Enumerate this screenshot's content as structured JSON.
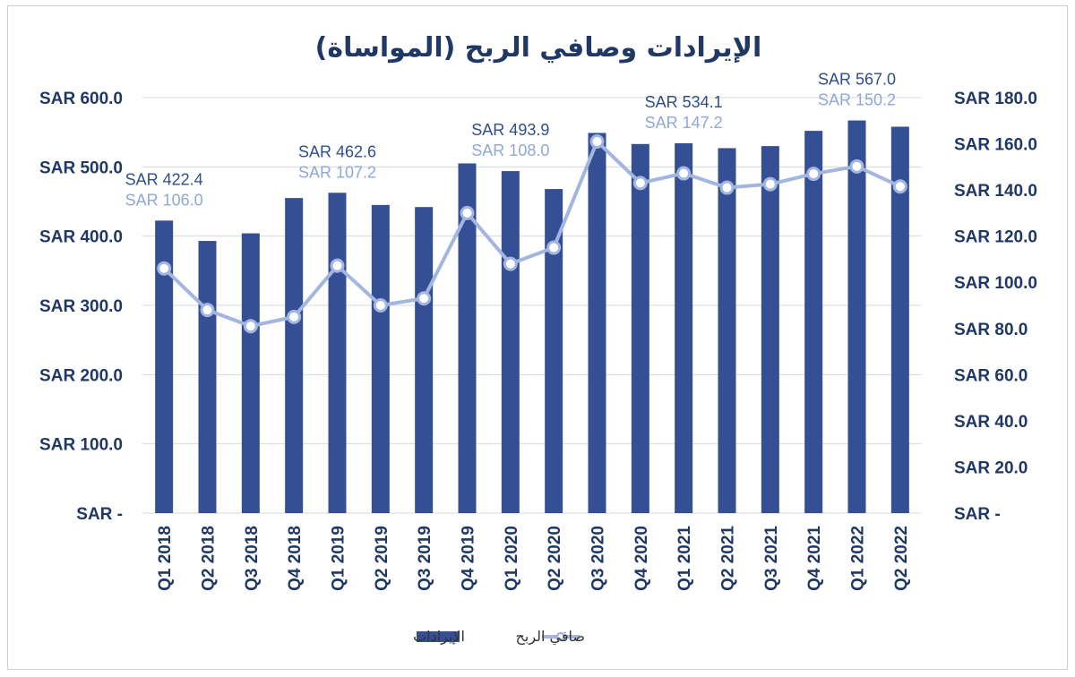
{
  "colors": {
    "bar": "#344f93",
    "line": "#a3b6e2",
    "text": "#1f3864",
    "grid": "#d9d9d9"
  },
  "chart_data": {
    "type": "bar+line",
    "title": "الإيرادات وصافي الربح (المواساة)",
    "categories": [
      "Q1 2018",
      "Q2 2018",
      "Q3 2018",
      "Q4 2018",
      "Q1 2019",
      "Q2 2019",
      "Q3 2019",
      "Q4 2019",
      "Q1 2020",
      "Q2 2020",
      "Q3 2020",
      "Q4 2020",
      "Q1 2021",
      "Q2 2021",
      "Q3 2021",
      "Q4 2021",
      "Q1 2022",
      "Q2 2022"
    ],
    "series": [
      {
        "name": "الإيرادات",
        "type": "bar",
        "axis": "left",
        "values": [
          422.4,
          393,
          404,
          455,
          462.6,
          445,
          442,
          505,
          493.9,
          468,
          549,
          533,
          534.1,
          527,
          530,
          552,
          567.0,
          558
        ]
      },
      {
        "name": "صافي الربح",
        "type": "line",
        "axis": "right",
        "values": [
          106.0,
          88,
          81,
          85,
          107.2,
          90,
          93,
          130,
          108.0,
          115,
          161,
          143,
          147.2,
          141,
          142.5,
          147,
          150.2,
          141.5
        ]
      }
    ],
    "left_axis": {
      "ylim": [
        0,
        600
      ],
      "ticks": [
        0,
        100,
        200,
        300,
        400,
        500,
        600
      ],
      "tick_labels": [
        "SAR -",
        "SAR 100.0",
        "SAR 200.0",
        "SAR 300.0",
        "SAR 400.0",
        "SAR 500.0",
        "SAR 600.0"
      ]
    },
    "right_axis": {
      "ylim": [
        0,
        180
      ],
      "ticks": [
        0,
        20,
        40,
        60,
        80,
        100,
        120,
        140,
        160,
        180
      ],
      "tick_labels": [
        "SAR -",
        "SAR 20.0",
        "SAR 40.0",
        "SAR 60.0",
        "SAR 80.0",
        "SAR 100.0",
        "SAR 120.0",
        "SAR 140.0",
        "SAR 160.0",
        "SAR 180.0"
      ]
    },
    "annotations": [
      {
        "index": 0,
        "revenue_label": "SAR 422.4",
        "net_profit_label": "SAR 106.0"
      },
      {
        "index": 4,
        "revenue_label": "SAR 462.6",
        "net_profit_label": "SAR 107.2"
      },
      {
        "index": 8,
        "revenue_label": "SAR 493.9",
        "net_profit_label": "SAR 108.0"
      },
      {
        "index": 12,
        "revenue_label": "SAR 534.1",
        "net_profit_label": "SAR 147.2"
      },
      {
        "index": 16,
        "revenue_label": "SAR 567.0",
        "net_profit_label": "SAR 150.2"
      }
    ],
    "legend": {
      "position": "bottom",
      "items": [
        "الإيرادات",
        "صافي الربح"
      ]
    },
    "grid": true
  }
}
